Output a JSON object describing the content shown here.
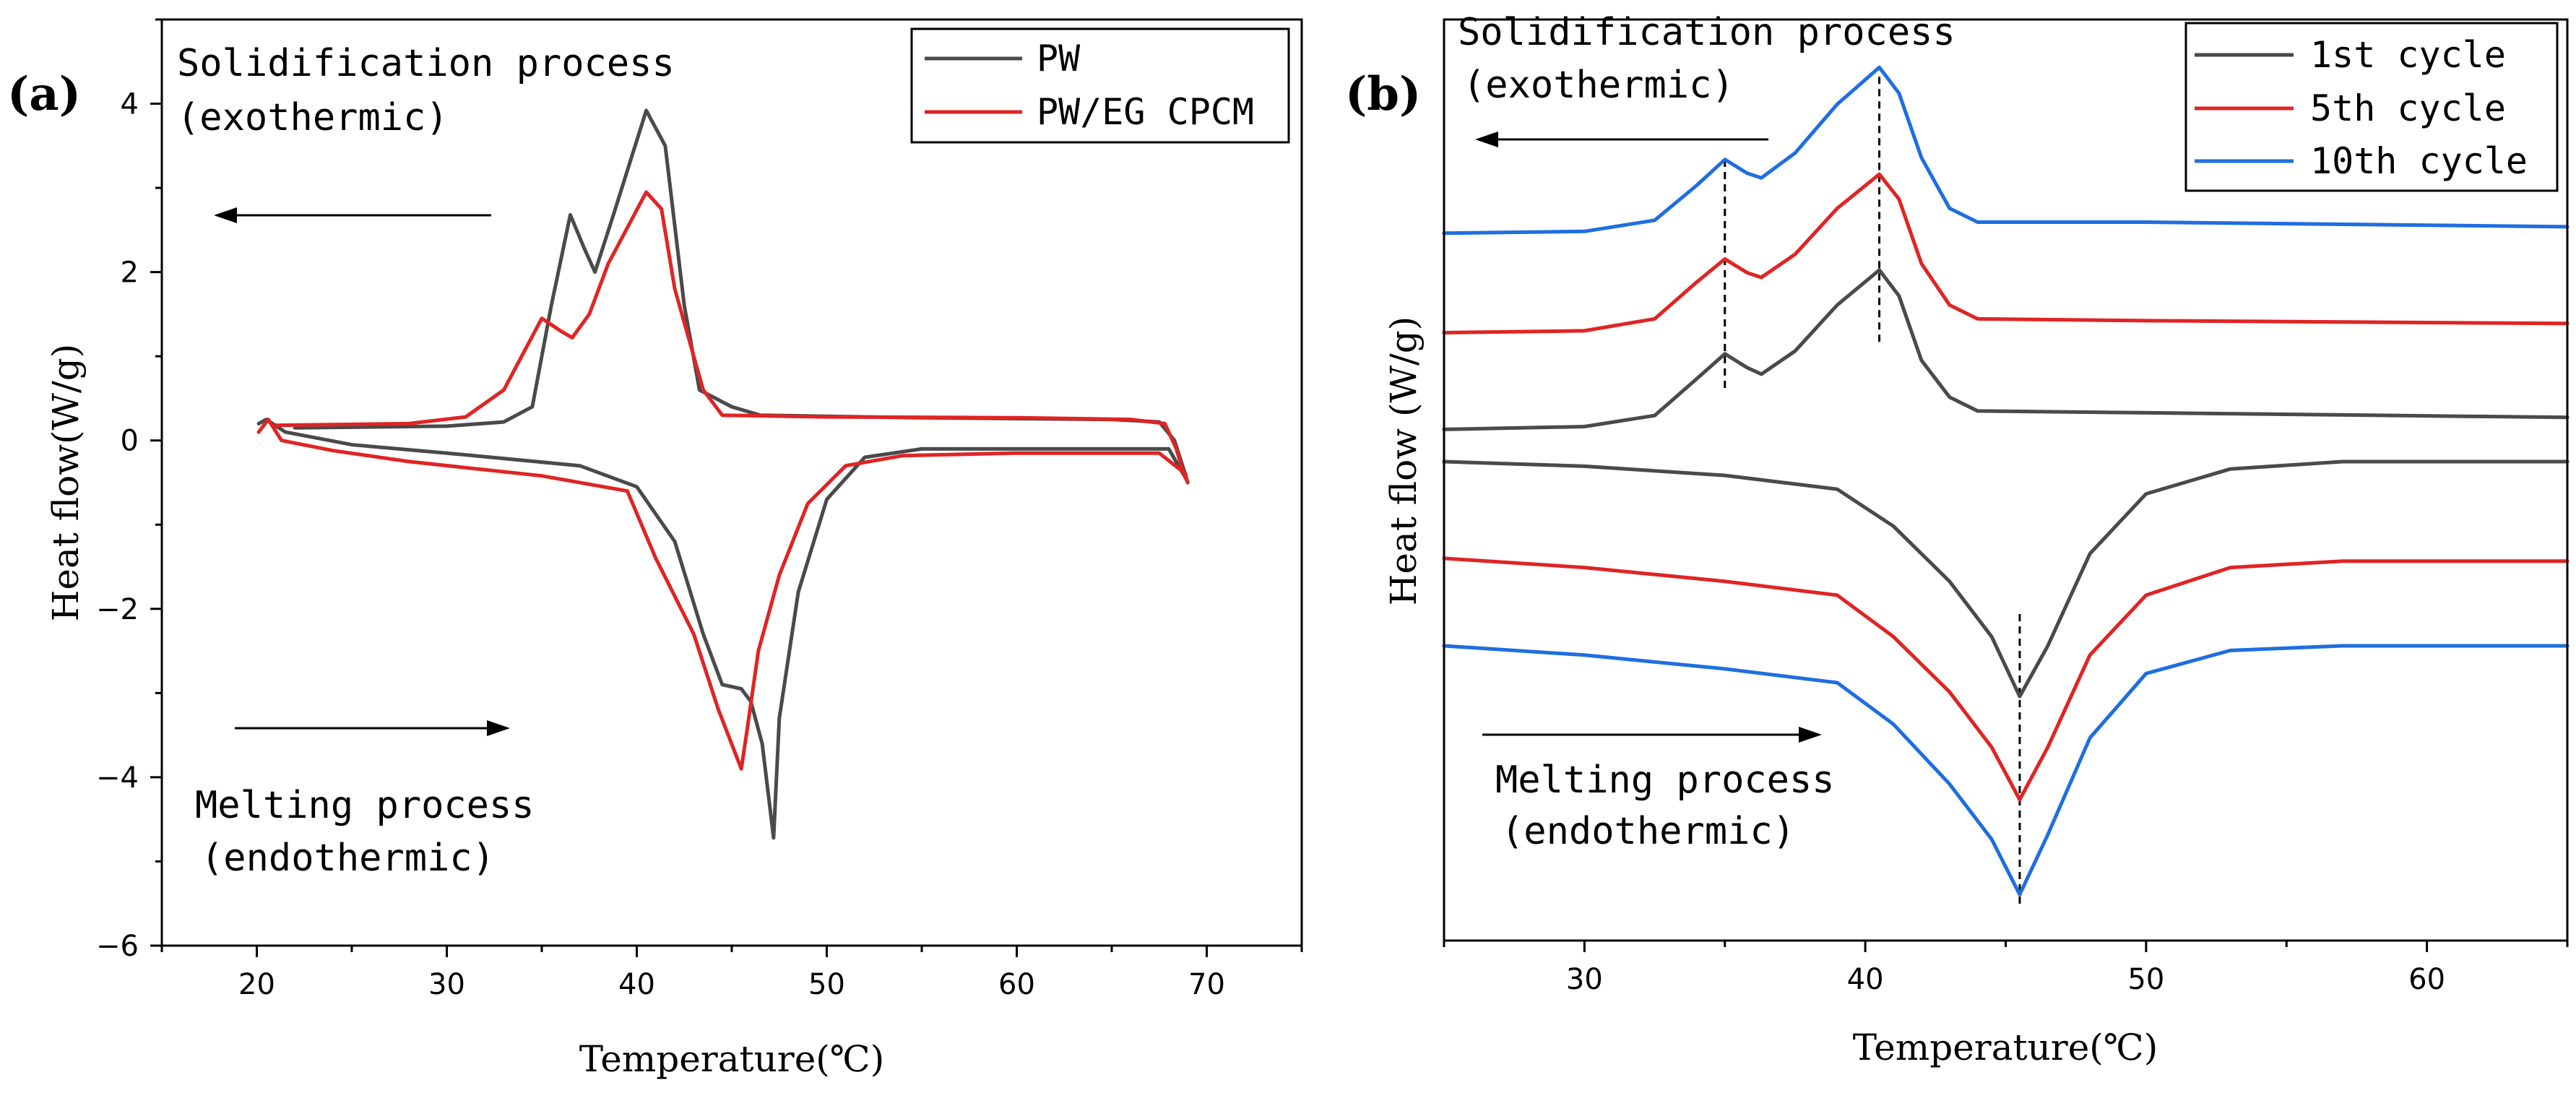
{
  "chart_data": [
    {
      "panel": "(a)",
      "type": "line",
      "xlabel": "Temperature(℃)",
      "ylabel": "Heat flow(W/g)",
      "xlim": [
        15,
        75
      ],
      "ylim": [
        -6,
        5
      ],
      "xticks": [
        20,
        30,
        40,
        50,
        60,
        70
      ],
      "yticks": [
        -6,
        -4,
        -2,
        0,
        2,
        4
      ],
      "tick_labels": {
        "y": {
          "-6": "−6",
          "-4": "−4",
          "-2": "−2",
          "0": "0",
          "2": "2",
          "4": "4"
        }
      },
      "legend": {
        "position": "top-right",
        "entries": [
          "PW",
          "PW/EG CPCM"
        ]
      },
      "annotations": [
        {
          "name": "solidification",
          "lines": [
            "Solidification process",
            "(exothermic)"
          ],
          "arrow": "left"
        },
        {
          "name": "melting",
          "lines": [
            "Melting process",
            "(endothermic)"
          ],
          "arrow": "right"
        }
      ],
      "series": [
        {
          "name": "PW",
          "color": "#4a4a4a",
          "segments": [
            [
              [
                22,
                0.15
              ],
              [
                30,
                0.17
              ],
              [
                33,
                0.22
              ],
              [
                34.5,
                0.4
              ],
              [
                35.5,
                1.6
              ],
              [
                36.5,
                2.68
              ],
              [
                37.2,
                2.3
              ],
              [
                37.8,
                2.0
              ],
              [
                38.8,
                2.7
              ],
              [
                40.5,
                3.92
              ],
              [
                41.5,
                3.5
              ],
              [
                42.5,
                1.6
              ],
              [
                43.3,
                0.6
              ],
              [
                45,
                0.4
              ],
              [
                46.5,
                0.3
              ],
              [
                55,
                0.27
              ],
              [
                65,
                0.25
              ],
              [
                67.5,
                0.22
              ],
              [
                68.3,
                0.0
              ],
              [
                68.8,
                -0.35
              ],
              [
                69,
                -0.5
              ]
            ],
            [
              [
                68.9,
                -0.45
              ],
              [
                68,
                -0.1
              ],
              [
                60,
                -0.1
              ],
              [
                55,
                -0.1
              ],
              [
                52,
                -0.2
              ],
              [
                50,
                -0.7
              ],
              [
                48.5,
                -1.8
              ],
              [
                47.5,
                -3.3
              ],
              [
                47.2,
                -4.72
              ],
              [
                46.6,
                -3.6
              ],
              [
                46,
                -3.1
              ],
              [
                45.5,
                -2.95
              ],
              [
                44.5,
                -2.9
              ],
              [
                43.5,
                -2.3
              ],
              [
                42,
                -1.2
              ],
              [
                40,
                -0.55
              ],
              [
                37,
                -0.3
              ],
              [
                30,
                -0.15
              ],
              [
                25,
                -0.05
              ],
              [
                21.5,
                0.1
              ],
              [
                20.5,
                0.25
              ],
              [
                20.1,
                0.2
              ]
            ]
          ]
        },
        {
          "name": "PW/EG CPCM",
          "color": "#e02424",
          "segments": [
            [
              [
                21,
                0.18
              ],
              [
                28,
                0.2
              ],
              [
                31,
                0.28
              ],
              [
                33,
                0.6
              ],
              [
                35,
                1.45
              ],
              [
                36,
                1.3
              ],
              [
                36.6,
                1.22
              ],
              [
                37.5,
                1.5
              ],
              [
                38.5,
                2.1
              ],
              [
                40.5,
                2.95
              ],
              [
                41.3,
                2.75
              ],
              [
                42,
                1.8
              ],
              [
                43.5,
                0.6
              ],
              [
                44.5,
                0.3
              ],
              [
                50,
                0.28
              ],
              [
                60,
                0.27
              ],
              [
                66,
                0.25
              ],
              [
                67.8,
                0.2
              ],
              [
                68.4,
                -0.1
              ],
              [
                68.8,
                -0.4
              ],
              [
                69,
                -0.5
              ]
            ],
            [
              [
                68.9,
                -0.4
              ],
              [
                67.5,
                -0.15
              ],
              [
                60,
                -0.15
              ],
              [
                54,
                -0.18
              ],
              [
                51,
                -0.3
              ],
              [
                49,
                -0.75
              ],
              [
                47.5,
                -1.6
              ],
              [
                46.4,
                -2.5
              ],
              [
                45.8,
                -3.45
              ],
              [
                45.5,
                -3.9
              ],
              [
                44.3,
                -3.2
              ],
              [
                43,
                -2.3
              ],
              [
                41,
                -1.4
              ],
              [
                39.5,
                -0.6
              ],
              [
                35,
                -0.42
              ],
              [
                28,
                -0.25
              ],
              [
                24,
                -0.12
              ],
              [
                21.3,
                0.0
              ],
              [
                20.6,
                0.25
              ],
              [
                20.1,
                0.1
              ]
            ]
          ]
        }
      ]
    },
    {
      "panel": "(b)",
      "type": "line",
      "xlabel": "Temperature(℃)",
      "ylabel": "Heat flow (W/g)",
      "xlim": [
        25,
        65
      ],
      "ylim": [
        0,
        10
      ],
      "xticks": [
        30,
        40,
        50,
        60
      ],
      "yticks": [],
      "legend": {
        "position": "top-right",
        "entries": [
          "1st cycle",
          "5th cycle",
          "10th cycle"
        ]
      },
      "annotations": [
        {
          "name": "solidification",
          "lines": [
            "Solidification process",
            "(exothermic)"
          ],
          "arrow": "left"
        },
        {
          "name": "melting",
          "lines": [
            "Melting process",
            "(endothermic)"
          ],
          "arrow": "right"
        }
      ],
      "reference_lines_x": [
        35,
        40.5,
        45.5
      ],
      "series": [
        {
          "name": "1st cycle",
          "color": "#4a4a4a",
          "segments": [
            [
              [
                25,
                5.55
              ],
              [
                30,
                5.58
              ],
              [
                32.5,
                5.7
              ],
              [
                34,
                6.1
              ],
              [
                35,
                6.37
              ],
              [
                35.8,
                6.22
              ],
              [
                36.3,
                6.15
              ],
              [
                37.5,
                6.4
              ],
              [
                39,
                6.9
              ],
              [
                40.5,
                7.28
              ],
              [
                41.2,
                7.0
              ],
              [
                42,
                6.3
              ],
              [
                43,
                5.9
              ],
              [
                44,
                5.75
              ],
              [
                50,
                5.73
              ],
              [
                65,
                5.68
              ]
            ],
            [
              [
                25,
                5.2
              ],
              [
                30,
                5.15
              ],
              [
                35,
                5.05
              ],
              [
                39,
                4.9
              ],
              [
                41,
                4.5
              ],
              [
                43,
                3.9
              ],
              [
                44.5,
                3.3
              ],
              [
                45.5,
                2.65
              ],
              [
                46.5,
                3.2
              ],
              [
                48,
                4.2
              ],
              [
                50,
                4.85
              ],
              [
                53,
                5.12
              ],
              [
                57,
                5.2
              ],
              [
                65,
                5.2
              ]
            ]
          ]
        },
        {
          "name": "5th cycle",
          "color": "#e02424",
          "segments": [
            [
              [
                25,
                6.6
              ],
              [
                30,
                6.62
              ],
              [
                32.5,
                6.75
              ],
              [
                34,
                7.15
              ],
              [
                35,
                7.4
              ],
              [
                35.8,
                7.25
              ],
              [
                36.3,
                7.2
              ],
              [
                37.5,
                7.45
              ],
              [
                39,
                7.95
              ],
              [
                40.5,
                8.32
              ],
              [
                41.2,
                8.05
              ],
              [
                42,
                7.35
              ],
              [
                43,
                6.9
              ],
              [
                44,
                6.75
              ],
              [
                50,
                6.73
              ],
              [
                65,
                6.7
              ]
            ],
            [
              [
                25,
                4.15
              ],
              [
                30,
                4.05
              ],
              [
                35,
                3.9
              ],
              [
                39,
                3.75
              ],
              [
                41,
                3.3
              ],
              [
                43,
                2.7
              ],
              [
                44.5,
                2.1
              ],
              [
                45.5,
                1.53
              ],
              [
                46.5,
                2.1
              ],
              [
                48,
                3.1
              ],
              [
                50,
                3.75
              ],
              [
                53,
                4.05
              ],
              [
                57,
                4.12
              ],
              [
                65,
                4.12
              ]
            ]
          ]
        },
        {
          "name": "10th cycle",
          "color": "#1f6ee0",
          "segments": [
            [
              [
                25,
                7.68
              ],
              [
                30,
                7.7
              ],
              [
                32.5,
                7.82
              ],
              [
                34,
                8.2
              ],
              [
                35,
                8.48
              ],
              [
                35.8,
                8.33
              ],
              [
                36.3,
                8.28
              ],
              [
                37.5,
                8.55
              ],
              [
                39,
                9.08
              ],
              [
                40.5,
                9.48
              ],
              [
                41.2,
                9.2
              ],
              [
                42,
                8.5
              ],
              [
                43,
                7.95
              ],
              [
                44,
                7.8
              ],
              [
                50,
                7.8
              ],
              [
                65,
                7.75
              ]
            ],
            [
              [
                25,
                3.2
              ],
              [
                30,
                3.1
              ],
              [
                35,
                2.95
              ],
              [
                39,
                2.8
              ],
              [
                41,
                2.35
              ],
              [
                43,
                1.7
              ],
              [
                44.5,
                1.1
              ],
              [
                45.5,
                0.5
              ],
              [
                46.5,
                1.15
              ],
              [
                48,
                2.2
              ],
              [
                50,
                2.9
              ],
              [
                53,
                3.15
              ],
              [
                57,
                3.2
              ],
              [
                65,
                3.2
              ]
            ]
          ]
        }
      ]
    }
  ]
}
